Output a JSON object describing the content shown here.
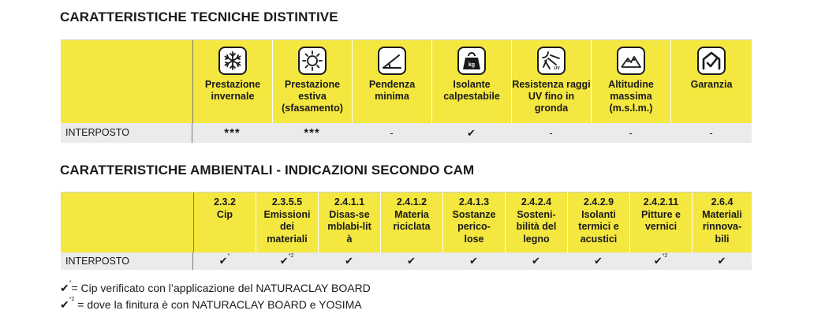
{
  "section1": {
    "title": "CARATTERISTICHE TECNICHE DISTINTIVE",
    "columns": [
      {
        "icon": "snowflake-icon",
        "label": "Prestazione invernale"
      },
      {
        "icon": "sun-icon",
        "label": "Prestazione estiva (sfasamento)"
      },
      {
        "icon": "slope-icon",
        "label": "Pendenza minima"
      },
      {
        "icon": "weight-icon",
        "icon_text": "kg",
        "label": "Isolante calpestabile"
      },
      {
        "icon": "uv-icon",
        "icon_text": "UV",
        "label": "Resistenza raggi UV fino in gronda"
      },
      {
        "icon": "mountain-icon",
        "label": "Altitudine massima (m.s.l.m.)"
      },
      {
        "icon": "house-check-icon",
        "label": "Garanzia"
      }
    ],
    "row": {
      "label": "INTERPOSTO",
      "values": [
        "***",
        "***",
        "-",
        "✔",
        "-",
        "-",
        "-"
      ]
    }
  },
  "section2": {
    "title": "CARATTERISTICHE AMBIENTALI - INDICAZIONI SECONDO CAM",
    "columns": [
      {
        "code": "2.3.2",
        "label": "Cip"
      },
      {
        "code": "2.3.5.5",
        "label": "Emissioni dei materiali"
      },
      {
        "code": "2.4.1.1",
        "label": "Disas-semblabi-lità"
      },
      {
        "code": "2.4.1.2",
        "label": "Materia riciclata"
      },
      {
        "code": "2.4.1.3",
        "label": "Sostanze perico-lose"
      },
      {
        "code": "2.4.2.4",
        "label": "Sosteni-bilità del legno"
      },
      {
        "code": "2.4.2.9",
        "label": "Isolanti termici e acustici"
      },
      {
        "code": "2.4.2.11",
        "label": "Pitture e vernici"
      },
      {
        "code": "2.6.4",
        "label": "Materiali rinnova-bili"
      }
    ],
    "row": {
      "label": "INTERPOSTO",
      "values": [
        {
          "mark": "✔",
          "sup": "*"
        },
        {
          "mark": "✔",
          "sup": "*2"
        },
        {
          "mark": "✔",
          "sup": ""
        },
        {
          "mark": "✔",
          "sup": ""
        },
        {
          "mark": "✔",
          "sup": ""
        },
        {
          "mark": "✔",
          "sup": ""
        },
        {
          "mark": "✔",
          "sup": ""
        },
        {
          "mark": "✔",
          "sup": "*2"
        },
        {
          "mark": "✔",
          "sup": ""
        }
      ]
    }
  },
  "notes": [
    {
      "mark": "✔",
      "sup": "*",
      "text": "= Cip verificato con l’applicazione del NATURACLAY BOARD"
    },
    {
      "mark": "✔",
      "sup": "*2",
      "text": " = dove la finitura è con NATURACLAY BOARD e YOSIMA"
    }
  ],
  "colors": {
    "header_yellow": "#f4e73f",
    "row_gray": "#ebebeb"
  }
}
